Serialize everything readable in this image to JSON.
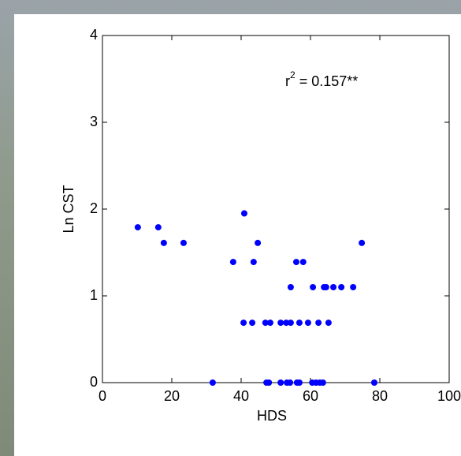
{
  "chart_data": {
    "type": "scatter",
    "xlabel": "HDS",
    "ylabel": "Ln CST",
    "annotation": {
      "base": "r",
      "sup": "2",
      "rest": " = 0.157**"
    },
    "color": "#0000ff",
    "xlim": [
      0,
      100
    ],
    "xticks": [
      0,
      20,
      40,
      60,
      80,
      100
    ],
    "ylim": [
      0,
      4
    ],
    "yticks": [
      0,
      1,
      2,
      3,
      4
    ],
    "x": [
      10.2,
      16.1,
      17.7,
      23.4,
      37.7,
      40.9,
      43.6,
      44.8,
      54.3,
      55.9,
      57.9,
      60.7,
      63.9,
      64.5,
      66.6,
      68.9,
      72.3,
      74.8,
      40.7,
      43.2,
      47.0,
      48.4,
      51.4,
      53.0,
      54.3,
      56.8,
      59.3,
      62.3,
      65.2,
      31.8,
      47.3,
      48.0,
      51.4,
      53.2,
      54.1,
      56.1,
      56.8,
      60.5,
      61.6,
      62.7,
      63.6,
      78.4
    ],
    "values": [
      1.79,
      1.79,
      1.61,
      1.61,
      1.39,
      1.95,
      1.39,
      1.61,
      1.1,
      1.39,
      1.39,
      1.1,
      1.1,
      1.1,
      1.1,
      1.1,
      1.1,
      1.61,
      0.69,
      0.69,
      0.69,
      0.69,
      0.69,
      0.69,
      0.69,
      0.69,
      0.69,
      0.69,
      0.69,
      0,
      0,
      0,
      0,
      0,
      0,
      0,
      0,
      0,
      0,
      0,
      0,
      0
    ]
  }
}
